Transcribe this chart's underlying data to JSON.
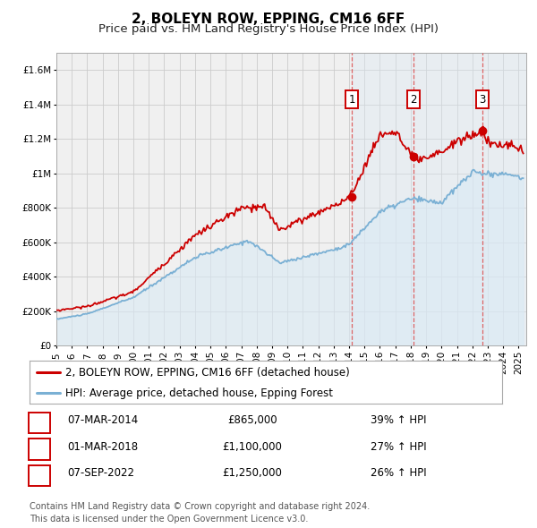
{
  "title": "2, BOLEYN ROW, EPPING, CM16 6FF",
  "subtitle": "Price paid vs. HM Land Registry's House Price Index (HPI)",
  "ylim": [
    0,
    1700000
  ],
  "yticks": [
    0,
    200000,
    400000,
    600000,
    800000,
    1000000,
    1200000,
    1400000,
    1600000
  ],
  "ytick_labels": [
    "£0",
    "£200K",
    "£400K",
    "£600K",
    "£800K",
    "£1M",
    "£1.2M",
    "£1.4M",
    "£1.6M"
  ],
  "xlim_start": 1995.0,
  "xlim_end": 2025.5,
  "xtick_years": [
    1995,
    1996,
    1997,
    1998,
    1999,
    2000,
    2001,
    2002,
    2003,
    2004,
    2005,
    2006,
    2007,
    2008,
    2009,
    2010,
    2011,
    2012,
    2013,
    2014,
    2015,
    2016,
    2017,
    2018,
    2019,
    2020,
    2021,
    2022,
    2023,
    2024,
    2025
  ],
  "sales_color": "#cc0000",
  "hpi_color": "#7ab0d4",
  "hpi_fill_color": "#daeaf5",
  "grid_color": "#cccccc",
  "background_color": "#f0f0f0",
  "vline_color": "#dd5555",
  "sale_points": [
    {
      "year": 2014.17,
      "value": 865000,
      "label": "1"
    },
    {
      "year": 2018.17,
      "value": 1100000,
      "label": "2"
    },
    {
      "year": 2022.67,
      "value": 1250000,
      "label": "3"
    }
  ],
  "vline_years": [
    2014.17,
    2018.17,
    2022.67
  ],
  "legend_entries": [
    {
      "label": "2, BOLEYN ROW, EPPING, CM16 6FF (detached house)",
      "color": "#cc0000"
    },
    {
      "label": "HPI: Average price, detached house, Epping Forest",
      "color": "#7ab0d4"
    }
  ],
  "table_rows": [
    {
      "num": "1",
      "date": "07-MAR-2014",
      "price": "£865,000",
      "change": "39% ↑ HPI"
    },
    {
      "num": "2",
      "date": "01-MAR-2018",
      "price": "£1,100,000",
      "change": "27% ↑ HPI"
    },
    {
      "num": "3",
      "date": "07-SEP-2022",
      "price": "£1,250,000",
      "change": "26% ↑ HPI"
    }
  ],
  "footer": "Contains HM Land Registry data © Crown copyright and database right 2024.\nThis data is licensed under the Open Government Licence v3.0.",
  "title_fontsize": 11,
  "subtitle_fontsize": 9.5,
  "tick_fontsize": 7.5,
  "legend_fontsize": 8.5,
  "table_fontsize": 8.5,
  "footer_fontsize": 7
}
